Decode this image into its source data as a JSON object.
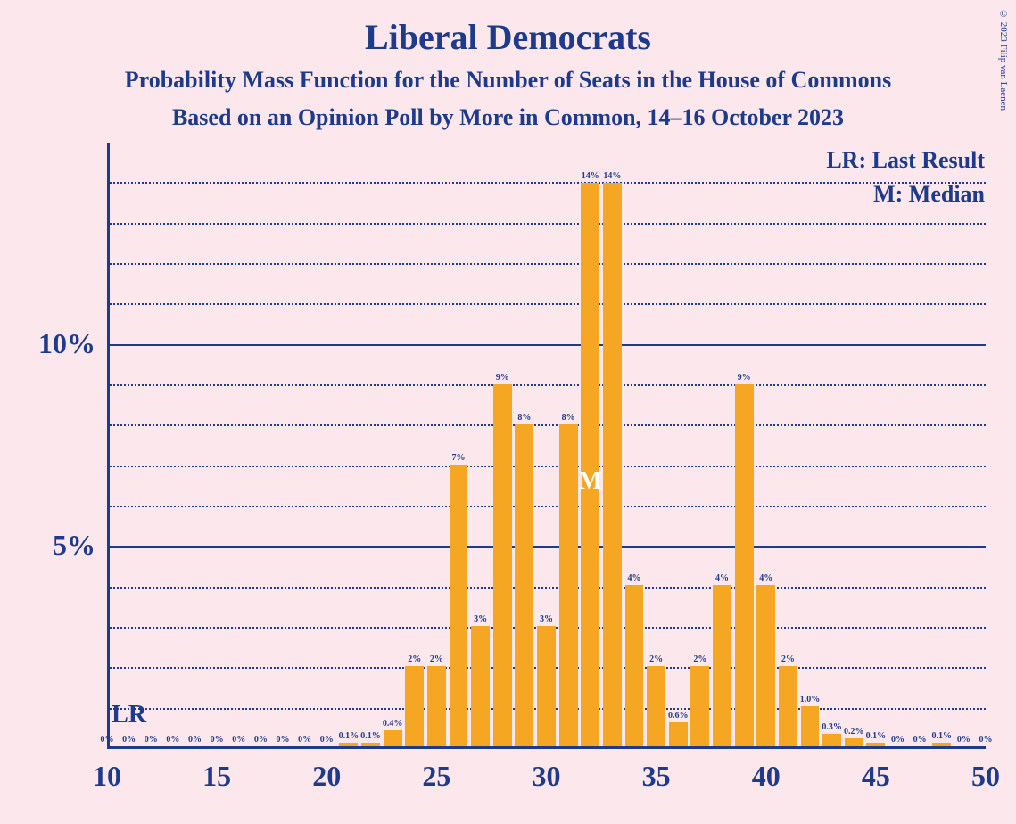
{
  "title": "Liberal Democrats",
  "subtitle1": "Probability Mass Function for the Number of Seats in the House of Commons",
  "subtitle2": "Based on an Opinion Poll by More in Common, 14–16 October 2023",
  "legend1": "LR: Last Result",
  "legend2": "M: Median",
  "copyright": "© 2023 Filip van Laenen",
  "chart": {
    "type": "bar",
    "background_color": "#fce8ec",
    "bar_color": "#f5a623",
    "axis_color": "#1e3a8a",
    "grid_color": "#1e3a8a",
    "text_color": "#1e3a8a",
    "marker_color_m": "#ffffff",
    "x_range": [
      10,
      50
    ],
    "x_ticks": [
      10,
      15,
      20,
      25,
      30,
      35,
      40,
      45,
      50
    ],
    "y_range": [
      0,
      15
    ],
    "y_major_ticks": [
      5,
      10
    ],
    "y_minor_step": 1,
    "y_tick_labels": {
      "5": "5%",
      "10": "10%"
    },
    "lr_position": 11,
    "median_position": 32,
    "bars": [
      {
        "x": 10,
        "value": 0,
        "label": "0%"
      },
      {
        "x": 11,
        "value": 0,
        "label": "0%"
      },
      {
        "x": 12,
        "value": 0,
        "label": "0%"
      },
      {
        "x": 13,
        "value": 0,
        "label": "0%"
      },
      {
        "x": 14,
        "value": 0,
        "label": "0%"
      },
      {
        "x": 15,
        "value": 0,
        "label": "0%"
      },
      {
        "x": 16,
        "value": 0,
        "label": "0%"
      },
      {
        "x": 17,
        "value": 0,
        "label": "0%"
      },
      {
        "x": 18,
        "value": 0,
        "label": "0%"
      },
      {
        "x": 19,
        "value": 0,
        "label": "0%"
      },
      {
        "x": 20,
        "value": 0,
        "label": "0%"
      },
      {
        "x": 21,
        "value": 0.1,
        "label": "0.1%"
      },
      {
        "x": 22,
        "value": 0.1,
        "label": "0.1%"
      },
      {
        "x": 23,
        "value": 0.4,
        "label": "0.4%"
      },
      {
        "x": 24,
        "value": 2,
        "label": "2%"
      },
      {
        "x": 25,
        "value": 2,
        "label": "2%"
      },
      {
        "x": 26,
        "value": 7,
        "label": "7%"
      },
      {
        "x": 27,
        "value": 3,
        "label": "3%"
      },
      {
        "x": 28,
        "value": 9,
        "label": "9%"
      },
      {
        "x": 29,
        "value": 8,
        "label": "8%"
      },
      {
        "x": 30,
        "value": 3,
        "label": "3%"
      },
      {
        "x": 31,
        "value": 8,
        "label": "8%"
      },
      {
        "x": 32,
        "value": 14,
        "label": "14%"
      },
      {
        "x": 33,
        "value": 14,
        "label": "14%"
      },
      {
        "x": 34,
        "value": 4,
        "label": "4%"
      },
      {
        "x": 35,
        "value": 2,
        "label": "2%"
      },
      {
        "x": 36,
        "value": 0.6,
        "label": "0.6%"
      },
      {
        "x": 37,
        "value": 2,
        "label": "2%"
      },
      {
        "x": 38,
        "value": 4,
        "label": "4%"
      },
      {
        "x": 39,
        "value": 9,
        "label": "9%"
      },
      {
        "x": 40,
        "value": 4,
        "label": "4%"
      },
      {
        "x": 41,
        "value": 2,
        "label": "2%"
      },
      {
        "x": 42,
        "value": 1.0,
        "label": "1.0%"
      },
      {
        "x": 43,
        "value": 0.3,
        "label": "0.3%"
      },
      {
        "x": 44,
        "value": 0.2,
        "label": "0.2%"
      },
      {
        "x": 45,
        "value": 0.1,
        "label": "0.1%"
      },
      {
        "x": 46,
        "value": 0,
        "label": "0%"
      },
      {
        "x": 47,
        "value": 0,
        "label": "0%"
      },
      {
        "x": 48,
        "value": 0.1,
        "label": "0.1%"
      },
      {
        "x": 49,
        "value": 0,
        "label": "0%"
      },
      {
        "x": 50,
        "value": 0,
        "label": "0%"
      }
    ]
  }
}
